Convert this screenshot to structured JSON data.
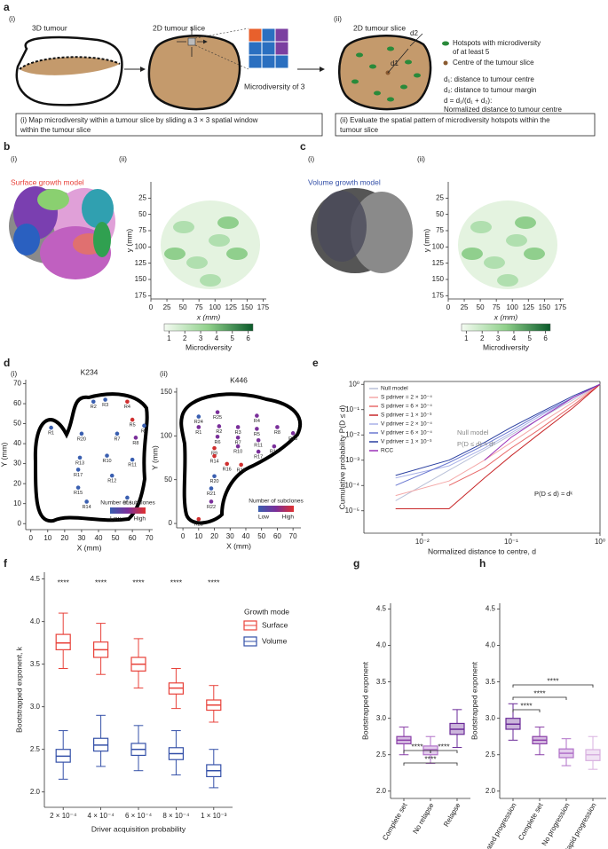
{
  "panel_a": {
    "label": "a",
    "sub_i": "(i)",
    "sub_ii": "(ii)",
    "tumour_3d": "3D tumour",
    "slice_1": "2D tumour slice",
    "slice_2": "2D tumour slice",
    "microdiversity": "Microdiversity of 3",
    "legend_hotspot": "Hotspots with microdiversity",
    "legend_hotspot_2": "of at least 5",
    "legend_centre": "Centre of the tumour slice",
    "d1_label": "d1",
    "d2_label": "d2",
    "def_d1": "d₁: distance to tumour centre",
    "def_d2": "d₂: distance to tumour margin",
    "def_d": "d = d₁/(d₁ + d₂):",
    "def_d_2": "Normalized distance to tumour centre",
    "box_i": [
      "(i) Map microdiversity within a tumour slice by sliding a 3 × 3 spatial window",
      "within the tumour slice"
    ],
    "box_ii": [
      "(ii) Evaluate the spatial pattern of microdiversity hotspots within the",
      "tumour slice"
    ]
  },
  "panel_b": {
    "label": "b",
    "sub_i": "(i)",
    "sub_ii": "(ii)",
    "model": "Surface growth model"
  },
  "panel_c": {
    "label": "c",
    "sub_i": "(i)",
    "sub_ii": "(ii)",
    "model": "Volume growth model"
  },
  "panel_d": {
    "label": "d",
    "sub_i": "(i)",
    "sub_ii": "(ii)"
  },
  "panel_e": {
    "label": "e"
  },
  "panel_f": {
    "label": "f"
  },
  "panel_g": {
    "label": "g"
  },
  "panel_h": {
    "label": "h"
  },
  "chart_data": [
    {
      "type": "heatmap",
      "xlim": [
        0,
        180
      ],
      "ylim": [
        0,
        180
      ],
      "xticks": [
        0,
        25,
        50,
        75,
        100,
        125,
        150,
        175
      ],
      "yticks": [
        25,
        50,
        75,
        100,
        125,
        150,
        175
      ],
      "xlabel": "x (mm)",
      "ylabel": "y (mm)",
      "colorbar": {
        "lim": [
          0.7,
          6.3
        ],
        "ticks": [
          1,
          2,
          3,
          4,
          5,
          6
        ],
        "label": "Microdiversity"
      }
    },
    {
      "type": "heatmap",
      "xlim": [
        0,
        180
      ],
      "ylim": [
        0,
        180
      ],
      "xticks": [
        0,
        25,
        50,
        75,
        100,
        125,
        150,
        175
      ],
      "yticks": [
        25,
        50,
        75,
        100,
        125,
        150,
        175
      ],
      "xlabel": "x (mm)",
      "ylabel": "y (mm)",
      "colorbar": {
        "lim": [
          0.7,
          6.3
        ],
        "ticks": [
          1,
          2,
          3,
          4,
          5,
          6
        ],
        "label": "Microdiversity"
      }
    },
    {
      "type": "map",
      "title": "K234",
      "xlim": [
        -3,
        72
      ],
      "ylim": [
        -3,
        72
      ],
      "xticks": [
        0,
        10,
        20,
        30,
        40,
        50,
        60,
        70
      ],
      "yticks": [
        0,
        10,
        20,
        30,
        40,
        50,
        60,
        70
      ],
      "xlabel": "X (mm)",
      "ylabel": "Y (mm)",
      "legend_title": "Number of subclones",
      "legend_low": "Low",
      "legend_high": "High",
      "points": [
        {
          "name": "R1",
          "x": 12,
          "y": 48,
          "color": "#3a5fb0"
        },
        {
          "name": "R2",
          "x": 37,
          "y": 61,
          "color": "#3a5fb0"
        },
        {
          "name": "R3",
          "x": 44,
          "y": 62,
          "color": "#3a5fb0"
        },
        {
          "name": "R4",
          "x": 57,
          "y": 61,
          "color": "#d03030"
        },
        {
          "name": "R5",
          "x": 60,
          "y": 52,
          "color": "#d03030"
        },
        {
          "name": "R6",
          "x": 67,
          "y": 49,
          "color": "#3a5fb0"
        },
        {
          "name": "R7",
          "x": 51,
          "y": 45,
          "color": "#3a5fb0"
        },
        {
          "name": "R8",
          "x": 62,
          "y": 43,
          "color": "#7a2f9a"
        },
        {
          "name": "R20",
          "x": 30,
          "y": 45,
          "color": "#3a5fb0"
        },
        {
          "name": "R10",
          "x": 45,
          "y": 34,
          "color": "#3a5fb0"
        },
        {
          "name": "R11",
          "x": 60,
          "y": 32,
          "color": "#3a5fb0"
        },
        {
          "name": "R13",
          "x": 29,
          "y": 33,
          "color": "#3a5fb0"
        },
        {
          "name": "R12",
          "x": 48,
          "y": 24,
          "color": "#3a5fb0"
        },
        {
          "name": "R17",
          "x": 28,
          "y": 27,
          "color": "#3a5fb0"
        },
        {
          "name": "R15",
          "x": 28,
          "y": 18,
          "color": "#3a5fb0"
        },
        {
          "name": "R14",
          "x": 33,
          "y": 11,
          "color": "#3a5fb0"
        },
        {
          "name": "R16",
          "x": 57,
          "y": 13,
          "color": "#3a5fb0"
        }
      ]
    },
    {
      "type": "map",
      "title": "K446",
      "xlim": [
        -4,
        75
      ],
      "ylim": [
        -5,
        155
      ],
      "xticks": [
        0,
        10,
        20,
        30,
        40,
        50,
        60,
        70
      ],
      "yticks": [
        0,
        50,
        100,
        150
      ],
      "xlabel": "X (mm)",
      "ylabel": "Y (mm)",
      "legend_title": "Number of subclones",
      "legend_low": "Low",
      "legend_high": "High",
      "points": [
        {
          "name": "R24",
          "x": 10,
          "y": 122,
          "color": "#3a5fb0"
        },
        {
          "name": "R25",
          "x": 22,
          "y": 127,
          "color": "#7a2f9a"
        },
        {
          "name": "R4",
          "x": 47,
          "y": 123,
          "color": "#7a2f9a"
        },
        {
          "name": "R1",
          "x": 10,
          "y": 110,
          "color": "#7a2f9a"
        },
        {
          "name": "R2",
          "x": 23,
          "y": 111,
          "color": "#7a2f9a"
        },
        {
          "name": "R3",
          "x": 35,
          "y": 110,
          "color": "#7a2f9a"
        },
        {
          "name": "R5",
          "x": 47,
          "y": 108,
          "color": "#7a2f9a"
        },
        {
          "name": "R8",
          "x": 60,
          "y": 110,
          "color": "#7a2f9a"
        },
        {
          "name": "R13",
          "x": 70,
          "y": 103,
          "color": "#7a2f9a"
        },
        {
          "name": "R6",
          "x": 22,
          "y": 99,
          "color": "#7a2f9a"
        },
        {
          "name": "R7",
          "x": 35,
          "y": 98,
          "color": "#7a2f9a"
        },
        {
          "name": "R11",
          "x": 48,
          "y": 95,
          "color": "#7a2f9a"
        },
        {
          "name": "R10",
          "x": 35,
          "y": 88,
          "color": "#7a2f9a"
        },
        {
          "name": "R12",
          "x": 58,
          "y": 88,
          "color": "#7a2f9a"
        },
        {
          "name": "R9",
          "x": 20,
          "y": 86,
          "color": "#d03030"
        },
        {
          "name": "R17",
          "x": 48,
          "y": 82,
          "color": "#7a2f9a"
        },
        {
          "name": "R14",
          "x": 20,
          "y": 77,
          "color": "#d03030"
        },
        {
          "name": "R16",
          "x": 28,
          "y": 68,
          "color": "#d03030"
        },
        {
          "name": "R19",
          "x": 37,
          "y": 67,
          "color": "#d03030"
        },
        {
          "name": "R20",
          "x": 20,
          "y": 54,
          "color": "#3a5fb0"
        },
        {
          "name": "R21",
          "x": 18,
          "y": 40,
          "color": "#3a5fb0"
        },
        {
          "name": "R22",
          "x": 18,
          "y": 25,
          "color": "#7a2f9a"
        },
        {
          "name": "R23",
          "x": 10,
          "y": 5,
          "color": "#d03030"
        }
      ]
    },
    {
      "type": "line",
      "log_x": true,
      "log_y": true,
      "xlim": [
        0.0022,
        1
      ],
      "ylim": [
        1.3e-06,
        1.3
      ],
      "xticks": [
        {
          "value": 0.01,
          "label": "10⁻²"
        },
        {
          "value": 0.1,
          "label": "10⁻¹"
        },
        {
          "value": 1,
          "label": "10⁰"
        }
      ],
      "yticks": [
        {
          "value": 1e-05,
          "label": "10⁻⁵"
        },
        {
          "value": 0.0001,
          "label": "10⁻⁴"
        },
        {
          "value": 0.001,
          "label": "10⁻³"
        },
        {
          "value": 0.01,
          "label": "10⁻²"
        },
        {
          "value": 0.1,
          "label": "10⁻¹"
        },
        {
          "value": 1,
          "label": "10⁰"
        }
      ],
      "xlabel": "Normalized distance to centre, d",
      "ylabel": "Cumulative probability P(D ≤ d)",
      "legend": "upper left",
      "annotations": [
        "Null model",
        "P(D ≤ d) ≈ d²",
        "P(D ≤ d) ≈ dᵏ"
      ],
      "x": [
        0.005,
        0.02,
        0.05,
        0.1,
        0.2,
        0.5,
        1
      ],
      "series": [
        {
          "name": "Null model",
          "color": "#b8c0d8",
          "values": [
            2.5e-05,
            0.0004,
            0.0025,
            0.01,
            0.04,
            0.25,
            1
          ]
        },
        {
          "name": "S pdriver = 2 × 10⁻⁴",
          "color": "#f4a8a8",
          "values": [
            4e-05,
            0.00015,
            0.001,
            0.005,
            0.025,
            0.2,
            1
          ]
        },
        {
          "name": "S pdriver = 6 × 10⁻⁴",
          "color": "#e86a6a",
          "values": [
            null,
            0.0001,
            0.0005,
            0.003,
            0.015,
            0.15,
            1
          ]
        },
        {
          "name": "S pdriver = 1 × 10⁻³",
          "color": "#c8282a",
          "values": [
            1.2e-05,
            1.2e-05,
            0.0002,
            0.0015,
            0.01,
            0.12,
            1
          ]
        },
        {
          "name": "V pdriver = 2 × 10⁻⁴",
          "color": "#a8b0e8",
          "values": [
            0.0002,
            0.0006,
            0.003,
            0.012,
            0.05,
            0.3,
            1
          ]
        },
        {
          "name": "V pdriver = 6 × 10⁻⁴",
          "color": "#6a78d0",
          "values": [
            0.0001,
            0.0008,
            0.004,
            0.015,
            0.06,
            0.3,
            1
          ]
        },
        {
          "name": "V pdriver = 1 × 10⁻³",
          "color": "#2a3fa0",
          "values": [
            0.00025,
            0.001,
            0.005,
            0.02,
            0.07,
            0.35,
            1
          ]
        },
        {
          "name": "RCC",
          "color": "#9a30b8",
          "values": [
            null,
            null,
            0.001,
            0.008,
            0.04,
            0.3,
            1
          ]
        }
      ]
    },
    {
      "type": "box",
      "ylim": [
        1.82,
        4.58
      ],
      "yticks": [
        {
          "value": 2,
          "label": "2.0"
        },
        2.5,
        {
          "value": 3,
          "label": "3.0"
        },
        3.5,
        {
          "value": 4,
          "label": "4.0"
        },
        4.5
      ],
      "categories": [
        "2 × 10⁻⁴",
        "4 × 10⁻⁴",
        "6 × 10⁻⁴",
        "8 × 10⁻⁴",
        "1 × 10⁻³"
      ],
      "xlabel": "Driver acquisition probability",
      "ylabel": "Bootstrapped exponent, k",
      "legend_title": "Growth mode",
      "annotations": [
        "****",
        "****",
        "****",
        "****",
        "****"
      ],
      "series": [
        {
          "name": "Surface",
          "color": "#e8423a",
          "median": [
            3.75,
            3.67,
            3.5,
            3.22,
            3.02
          ],
          "q1": [
            3.67,
            3.58,
            3.42,
            3.15,
            2.96
          ],
          "q3": [
            3.85,
            3.76,
            3.58,
            3.28,
            3.08
          ],
          "whisker_low": [
            3.45,
            3.38,
            3.22,
            2.98,
            2.82
          ],
          "whisker_high": [
            4.1,
            3.98,
            3.8,
            3.45,
            3.25
          ]
        },
        {
          "name": "Volume",
          "color": "#3450a8",
          "median": [
            2.42,
            2.55,
            2.5,
            2.45,
            2.25
          ],
          "q1": [
            2.35,
            2.48,
            2.43,
            2.38,
            2.18
          ],
          "q3": [
            2.5,
            2.63,
            2.57,
            2.52,
            2.32
          ],
          "whisker_low": [
            2.15,
            2.3,
            2.25,
            2.2,
            2.05
          ],
          "whisker_high": [
            2.72,
            2.9,
            2.78,
            2.72,
            2.5
          ]
        }
      ]
    },
    {
      "type": "box",
      "ylim": [
        1.9,
        4.58
      ],
      "yticks": [
        {
          "value": 2,
          "label": "2.0"
        },
        2.5,
        {
          "value": 3,
          "label": "3.0"
        },
        3.5,
        {
          "value": 4,
          "label": "4.0"
        },
        4.5
      ],
      "categories": [
        "Complete set",
        "No relapse",
        "Relapse"
      ],
      "ylabel": "Bootstrapped exponent",
      "annotations": [
        "****",
        "****",
        "****"
      ],
      "series": [
        {
          "colors": [
            "#8a3fa8",
            "#b070c8",
            "#6a2a98"
          ],
          "median": [
            2.7,
            2.57,
            2.85
          ],
          "q1": [
            2.65,
            2.5,
            2.78
          ],
          "q3": [
            2.75,
            2.62,
            2.93
          ],
          "whisker_low": [
            2.5,
            2.38,
            2.6
          ],
          "whisker_high": [
            2.88,
            2.75,
            3.12
          ]
        }
      ]
    },
    {
      "type": "box",
      "ylim": [
        1.9,
        4.58
      ],
      "yticks": [
        {
          "value": 2,
          "label": "2.0"
        },
        2.5,
        {
          "value": 3,
          "label": "3.0"
        },
        3.5,
        {
          "value": 4,
          "label": "4.0"
        },
        4.5
      ],
      "categories": [
        "Attenuated progression",
        "Complete set",
        "No progression",
        "Rapid progression"
      ],
      "ylabel": "Bootstrapped exponent",
      "annotations": [
        "****",
        "****",
        "****"
      ],
      "series": [
        {
          "colors": [
            "#6a2a98",
            "#8a3fa8",
            "#b070c8",
            "#d8b0e0"
          ],
          "median": [
            2.92,
            2.7,
            2.52,
            2.5
          ],
          "q1": [
            2.85,
            2.65,
            2.46,
            2.42
          ],
          "q3": [
            3.0,
            2.75,
            2.58,
            2.57
          ],
          "whisker_low": [
            2.7,
            2.5,
            2.35,
            2.3
          ],
          "whisker_high": [
            3.2,
            2.88,
            2.72,
            2.75
          ]
        }
      ]
    }
  ]
}
